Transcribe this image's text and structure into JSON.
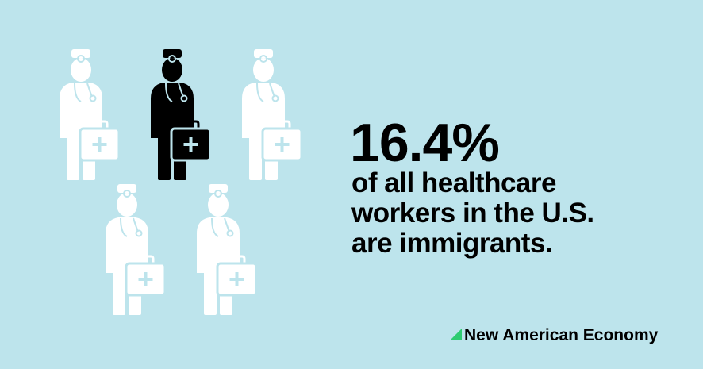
{
  "headline": {
    "stat": "16.4%",
    "lines": [
      "of all healthcare",
      "workers in the U.S.",
      "are immigrants."
    ]
  },
  "footer": {
    "brand": "New American Economy"
  }
}
